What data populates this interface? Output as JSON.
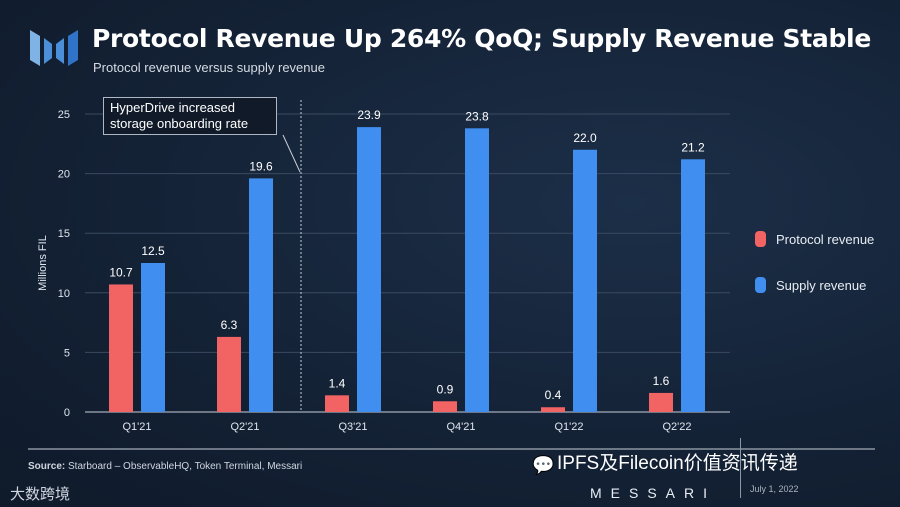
{
  "header": {
    "title": "Protocol Revenue Up 264% QoQ; Supply Revenue Stable",
    "subtitle": "Protocol revenue versus supply revenue"
  },
  "chart_data": {
    "type": "bar",
    "title": "Protocol Revenue Up 264% QoQ; Supply Revenue Stable",
    "subtitle": "Protocol revenue versus supply revenue",
    "xlabel": "",
    "ylabel": "Millions FIL",
    "ylim": [
      0,
      25
    ],
    "yticks": [
      0,
      5,
      10,
      15,
      20,
      25
    ],
    "grid": true,
    "legend_position": "right",
    "categories": [
      "Q1'21",
      "Q2'21",
      "Q3'21",
      "Q4'21",
      "Q1'22",
      "Q2'22"
    ],
    "series": [
      {
        "name": "Protocol revenue",
        "color": "#f26464",
        "values": [
          10.7,
          6.3,
          1.4,
          0.9,
          0.4,
          1.6
        ]
      },
      {
        "name": "Supply revenue",
        "color": "#3f8ef0",
        "values": [
          12.5,
          19.6,
          23.9,
          23.8,
          22.0,
          21.2
        ]
      }
    ],
    "annotation": "HyperDrive increased storage onboarding rate"
  },
  "footer": {
    "source_label": "Source:",
    "source_text": "Starboard – ObservableHQ, Token Terminal, Messari",
    "brand": "MESSARI",
    "date": "July 1, 2022",
    "watermark": "IPFS及Filecoin价值资讯传递",
    "watermark2": "大数跨境"
  }
}
